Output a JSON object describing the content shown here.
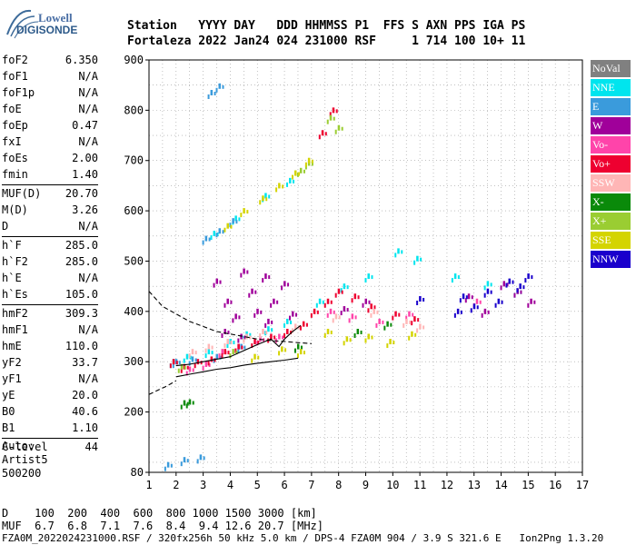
{
  "logo": {
    "line1": "Lowell",
    "line2": "DIGISONDE"
  },
  "header": {
    "labels": [
      "Station",
      "YYYY DAY",
      "DDD",
      "HHMMSS",
      "P1",
      "FFS",
      "S",
      "AXN",
      "PPS",
      "IGA",
      "PS"
    ],
    "values": [
      "Fortaleza",
      "2022 Jan24",
      "024",
      "231000",
      "RSF",
      "1",
      "714",
      "100",
      "10+",
      "11"
    ],
    "line1": "Station   YYYY DAY   DDD HHMMSS P1  FFS S AXN PPS IGA PS",
    "line2": "Fortaleza 2022 Jan24 024 231000 RSF     1 714 100 10+ 11"
  },
  "params": [
    {
      "group": [
        {
          "name": "foF2",
          "value": "6.350"
        },
        {
          "name": "foF1",
          "value": "N/A"
        },
        {
          "name": "foF1p",
          "value": "N/A"
        },
        {
          "name": "foE",
          "value": "N/A"
        },
        {
          "name": "foEp",
          "value": "0.47"
        },
        {
          "name": "fxI",
          "value": "N/A"
        },
        {
          "name": "foEs",
          "value": "2.00"
        },
        {
          "name": "fmin",
          "value": "1.40"
        }
      ]
    },
    {
      "group": [
        {
          "name": "MUF(D)",
          "value": "20.70"
        },
        {
          "name": "M(D)",
          "value": "3.26"
        },
        {
          "name": "D",
          "value": "N/A"
        }
      ]
    },
    {
      "group": [
        {
          "name": "h`F",
          "value": "285.0"
        },
        {
          "name": "h`F2",
          "value": "285.0"
        },
        {
          "name": "h`E",
          "value": "N/A"
        },
        {
          "name": "h`Es",
          "value": "105.0"
        }
      ]
    },
    {
      "group": [
        {
          "name": "hmF2",
          "value": "309.3"
        },
        {
          "name": "hmF1",
          "value": "N/A"
        },
        {
          "name": "hmE",
          "value": "110.0"
        },
        {
          "name": "yF2",
          "value": "33.7"
        },
        {
          "name": "yF1",
          "value": "N/A"
        },
        {
          "name": "yE",
          "value": "20.0"
        },
        {
          "name": "B0",
          "value": "40.6"
        },
        {
          "name": "B1",
          "value": "1.10"
        }
      ]
    },
    {
      "group": [
        {
          "name": "C-level",
          "value": "44"
        }
      ]
    }
  ],
  "auto": {
    "line1": "Auto:",
    "line2": "Artist5",
    "line3": "500200"
  },
  "legend": [
    {
      "label": "NoVal",
      "color": "#808080"
    },
    {
      "label": "NNE",
      "color": "#00e5ee"
    },
    {
      "label": "E",
      "color": "#3a9bdc"
    },
    {
      "label": "W",
      "color": "#a0009a"
    },
    {
      "label": "Vo-",
      "color": "#ff44aa"
    },
    {
      "label": "Vo+",
      "color": "#ee0030"
    },
    {
      "label": "SSW",
      "color": "#ffb6b6"
    },
    {
      "label": "X-",
      "color": "#0a8a0a"
    },
    {
      "label": "X+",
      "color": "#9acd32"
    },
    {
      "label": "SSE",
      "color": "#d4d400"
    },
    {
      "label": "NNW",
      "color": "#1a00cc"
    }
  ],
  "bottom": {
    "d_label": "D",
    "d_values": [
      "100",
      "200",
      "400",
      "600",
      "800",
      "1000",
      "1500",
      "3000"
    ],
    "d_unit": "[km]",
    "muf_label": "MUF",
    "muf_values": [
      "6.7",
      "6.8",
      "7.1",
      "7.6",
      "8.4",
      "9.4",
      "12.6",
      "20.7"
    ],
    "muf_unit": "[MHz]",
    "line1": "D    100  200  400  600  800 1000 1500 3000 [km]",
    "line2": "MUF  6.7  6.8  7.1  7.6  8.4  9.4 12.6 20.7 [MHz]"
  },
  "footer": "FZA0M_2022024231000.RSF / 320fx256h 50 kHz 5.0 km / DPS-4 FZA0M 904 / 3.9 S 321.6 E   Ion2Png 1.3.20",
  "chart_data": {
    "type": "scatter",
    "xlim": [
      1,
      17
    ],
    "ylim": [
      80,
      900
    ],
    "xticks": [
      1,
      2,
      3,
      4,
      5,
      6,
      7,
      8,
      9,
      10,
      11,
      12,
      13,
      14,
      15,
      16,
      17
    ],
    "yticks": [
      80,
      200,
      300,
      400,
      500,
      600,
      700,
      800,
      900
    ],
    "grid": true,
    "series": [
      {
        "name": "NNE",
        "color": "#00e5ee",
        "points": [
          [
            1.9,
            300
          ],
          [
            2.4,
            310
          ],
          [
            3.2,
            320
          ],
          [
            4.0,
            340
          ],
          [
            4.6,
            355
          ],
          [
            5.4,
            365
          ],
          [
            6.1,
            380
          ],
          [
            7.3,
            420
          ],
          [
            8.2,
            450
          ],
          [
            9.1,
            470
          ],
          [
            10.2,
            520
          ],
          [
            10.9,
            505
          ],
          [
            12.3,
            470
          ],
          [
            13.5,
            455
          ],
          [
            14.6,
            440
          ],
          [
            3.4,
            555
          ],
          [
            4.2,
            585
          ],
          [
            5.3,
            630
          ],
          [
            6.2,
            660
          ]
        ]
      },
      {
        "name": "E",
        "color": "#3a9bdc",
        "points": [
          [
            1.7,
            95
          ],
          [
            2.3,
            105
          ],
          [
            2.9,
            110
          ],
          [
            3.1,
            545
          ],
          [
            3.6,
            560
          ],
          [
            4.1,
            580
          ],
          [
            3.3,
            835
          ],
          [
            3.6,
            848
          ],
          [
            2.0,
            300
          ],
          [
            2.6,
            305
          ],
          [
            3.5,
            310
          ],
          [
            4.4,
            330
          ]
        ]
      },
      {
        "name": "W",
        "color": "#a0009a",
        "points": [
          [
            3.5,
            460
          ],
          [
            3.9,
            420
          ],
          [
            4.2,
            390
          ],
          [
            4.5,
            480
          ],
          [
            4.8,
            440
          ],
          [
            5.0,
            400
          ],
          [
            5.3,
            470
          ],
          [
            5.6,
            420
          ],
          [
            6.0,
            455
          ],
          [
            6.3,
            395
          ],
          [
            8.2,
            405
          ],
          [
            9.0,
            420
          ],
          [
            12.8,
            430
          ],
          [
            13.4,
            400
          ],
          [
            14.1,
            455
          ],
          [
            14.6,
            440
          ],
          [
            15.1,
            420
          ],
          [
            3.8,
            360
          ],
          [
            4.4,
            350
          ],
          [
            5.4,
            380
          ]
        ]
      },
      {
        "name": "Vo-",
        "color": "#ff44aa",
        "points": [
          [
            2.5,
            285
          ],
          [
            3.1,
            295
          ],
          [
            3.7,
            320
          ],
          [
            4.3,
            330
          ],
          [
            5.1,
            345
          ],
          [
            5.8,
            350
          ],
          [
            7.7,
            400
          ],
          [
            8.5,
            390
          ],
          [
            9.5,
            380
          ],
          [
            10.6,
            395
          ],
          [
            13.1,
            420
          ]
        ]
      },
      {
        "name": "Vo+",
        "color": "#ee0030",
        "points": [
          [
            1.9,
            300
          ],
          [
            2.3,
            290
          ],
          [
            2.8,
            300
          ],
          [
            3.3,
            305
          ],
          [
            3.8,
            320
          ],
          [
            4.3,
            330
          ],
          [
            4.9,
            340
          ],
          [
            5.5,
            350
          ],
          [
            6.1,
            360
          ],
          [
            6.7,
            375
          ],
          [
            7.1,
            400
          ],
          [
            7.6,
            420
          ],
          [
            8.0,
            440
          ],
          [
            8.6,
            430
          ],
          [
            9.2,
            410
          ],
          [
            10.1,
            395
          ],
          [
            10.8,
            385
          ],
          [
            7.4,
            755
          ],
          [
            7.8,
            800
          ]
        ]
      },
      {
        "name": "SSW",
        "color": "#ffb6b6",
        "points": [
          [
            2.6,
            320
          ],
          [
            3.2,
            330
          ],
          [
            3.9,
            340
          ],
          [
            4.6,
            350
          ],
          [
            5.2,
            360
          ],
          [
            6.4,
            370
          ],
          [
            7.9,
            390
          ],
          [
            9.3,
            400
          ],
          [
            10.5,
            380
          ],
          [
            11.0,
            370
          ]
        ]
      },
      {
        "name": "X-",
        "color": "#0a8a0a",
        "points": [
          [
            2.3,
            218
          ],
          [
            2.5,
            220
          ],
          [
            6.5,
            330
          ],
          [
            8.7,
            360
          ],
          [
            9.8,
            375
          ]
        ]
      },
      {
        "name": "X+",
        "color": "#9acd32",
        "points": [
          [
            7.7,
            785
          ],
          [
            8.0,
            765
          ],
          [
            6.6,
            680
          ],
          [
            6.9,
            695
          ],
          [
            2.2,
            290
          ],
          [
            4.1,
            320
          ]
        ]
      },
      {
        "name": "SSE",
        "color": "#d4d400",
        "points": [
          [
            3.9,
            570
          ],
          [
            4.5,
            600
          ],
          [
            5.2,
            625
          ],
          [
            5.8,
            650
          ],
          [
            6.4,
            675
          ],
          [
            6.9,
            700
          ],
          [
            7.6,
            360
          ],
          [
            8.3,
            345
          ],
          [
            9.1,
            350
          ],
          [
            9.9,
            340
          ],
          [
            10.7,
            355
          ],
          [
            6.6,
            320
          ],
          [
            5.9,
            325
          ],
          [
            4.9,
            310
          ]
        ]
      },
      {
        "name": "NNW",
        "color": "#1a00cc",
        "points": [
          [
            12.6,
            430
          ],
          [
            13.0,
            410
          ],
          [
            13.5,
            440
          ],
          [
            13.9,
            420
          ],
          [
            14.3,
            460
          ],
          [
            14.7,
            450
          ],
          [
            15.0,
            470
          ],
          [
            12.4,
            400
          ],
          [
            11.0,
            425
          ]
        ]
      }
    ],
    "curves": [
      {
        "name": "",
        "style": "dashed",
        "points": [
          [
            1,
            440
          ],
          [
            1.5,
            410
          ],
          [
            2.0,
            395
          ],
          [
            2.5,
            380
          ],
          [
            3.0,
            370
          ],
          [
            3.5,
            360
          ],
          [
            4.0,
            355
          ],
          [
            4.5,
            350
          ],
          [
            5.0,
            345
          ],
          [
            5.5,
            342
          ],
          [
            6.0,
            340
          ],
          [
            6.5,
            338
          ],
          [
            7.0,
            336
          ]
        ]
      },
      {
        "name": "",
        "style": "solid",
        "points": [
          [
            2.0,
            292
          ],
          [
            2.5,
            295
          ],
          [
            3.0,
            300
          ],
          [
            3.5,
            305
          ],
          [
            4.0,
            310
          ],
          [
            4.5,
            322
          ],
          [
            5.0,
            334
          ],
          [
            5.5,
            345
          ],
          [
            5.8,
            330
          ],
          [
            6.0,
            345
          ],
          [
            6.3,
            360
          ],
          [
            6.6,
            372
          ]
        ]
      },
      {
        "name": "",
        "style": "solid",
        "points": [
          [
            2.0,
            270
          ],
          [
            2.5,
            275
          ],
          [
            3.0,
            280
          ],
          [
            3.5,
            285
          ],
          [
            4.0,
            288
          ],
          [
            4.5,
            293
          ],
          [
            5.0,
            297
          ],
          [
            5.5,
            300
          ],
          [
            6.0,
            303
          ],
          [
            6.5,
            307
          ]
        ]
      },
      {
        "name": "",
        "style": "dashed",
        "points": [
          [
            1.0,
            235
          ],
          [
            1.2,
            240
          ],
          [
            1.4,
            245
          ],
          [
            1.6,
            250
          ],
          [
            1.8,
            256
          ],
          [
            2.0,
            262
          ]
        ]
      }
    ]
  }
}
